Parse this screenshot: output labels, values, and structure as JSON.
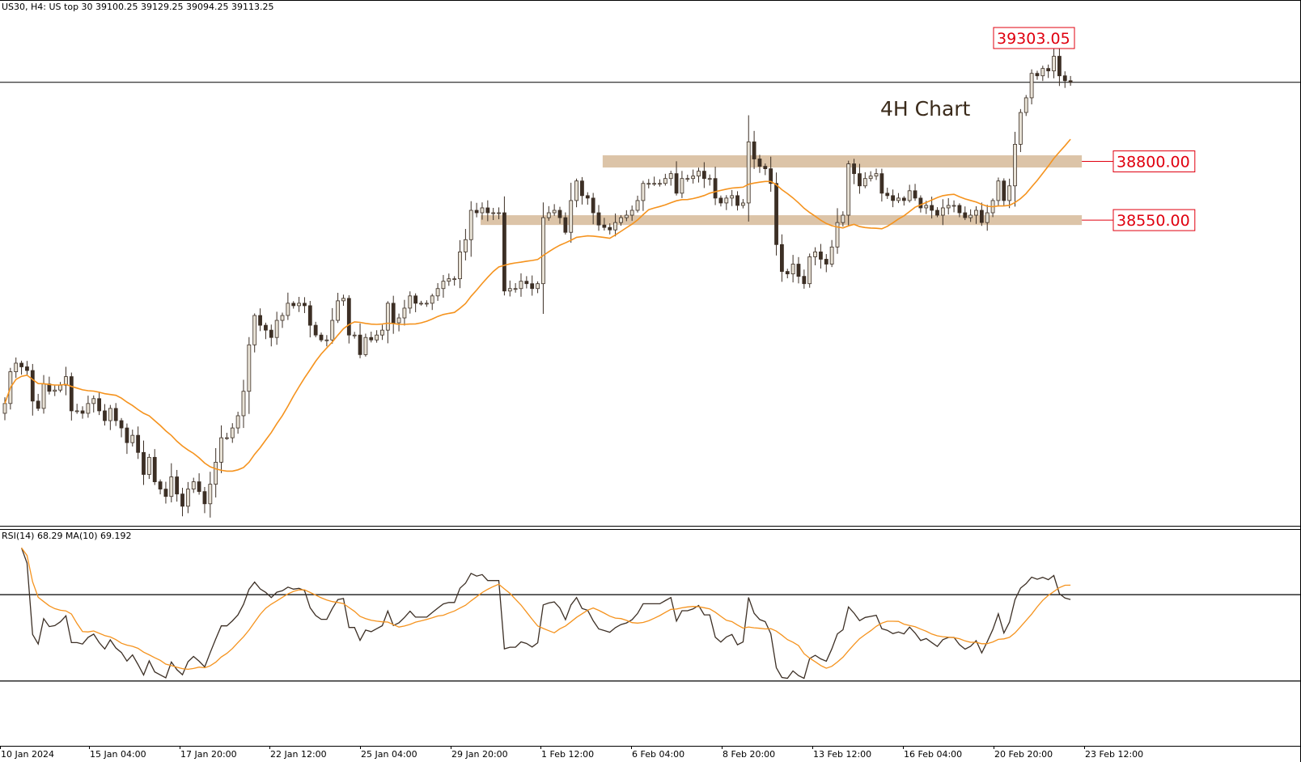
{
  "header": {
    "info": "US30, H4:  US top 30  39100.25 39129.25 39094.25 39113.25"
  },
  "annotations": {
    "title": "4H Chart"
  },
  "rsi_panel": {
    "info": "RSI(14) 68.29 MA(10) 69.192"
  },
  "colors": {
    "bull_body": "#e8e2d6",
    "bear_body": "#3c2f25",
    "wick": "#3c2f25",
    "ma": "#f5931e",
    "rsi": "#3c2f25",
    "zone": "#dcc4a8",
    "label_red": "#e0000f"
  },
  "chart_data": [
    {
      "type": "candlestick",
      "title": "4H Chart",
      "symbol": "US30, H4",
      "ylim": [
        37300,
        39450
      ],
      "x_ticks": [
        "10 Jan 2024",
        "15 Jan 04:00",
        "17 Jan 20:00",
        "22 Jan 12:00",
        "25 Jan 04:00",
        "29 Jan 20:00",
        "1 Feb 12:00",
        "6 Feb 04:00",
        "8 Feb 20:00",
        "13 Feb 12:00",
        "16 Feb 04:00",
        "20 Feb 20:00",
        "23 Feb 12:00"
      ],
      "zones": [
        {
          "label": "38800.00",
          "low": 38765,
          "high": 38815
        },
        {
          "label": "38550.00",
          "low": 38530,
          "high": 38570
        }
      ],
      "price_labels": [
        {
          "label": "39303.05",
          "value": 39303.05
        }
      ],
      "current_price": 39113.25,
      "close": [
        37800,
        37930,
        37965,
        37950,
        37935,
        37810,
        37780,
        37880,
        37850,
        37855,
        37875,
        37910,
        37770,
        37770,
        37760,
        37800,
        37820,
        37770,
        37730,
        37780,
        37730,
        37700,
        37640,
        37670,
        37600,
        37510,
        37580,
        37480,
        37450,
        37420,
        37500,
        37430,
        37380,
        37450,
        37480,
        37440,
        37390,
        37470,
        37560,
        37660,
        37660,
        37700,
        37750,
        37850,
        38040,
        38160,
        38120,
        38100,
        38070,
        38140,
        38160,
        38210,
        38200,
        38210,
        38200,
        38120,
        38080,
        38060,
        38060,
        38140,
        38220,
        38230,
        38080,
        38080,
        38000,
        38070,
        38060,
        38080,
        38100,
        38210,
        38130,
        38150,
        38190,
        38240,
        38210,
        38210,
        38210,
        38240,
        38270,
        38300,
        38310,
        38310,
        38420,
        38470,
        38590,
        38580,
        38600,
        38580,
        38580,
        38580,
        38260,
        38270,
        38270,
        38300,
        38290,
        38270,
        38290,
        38560,
        38580,
        38590,
        38560,
        38500,
        38630,
        38710,
        38650,
        38640,
        38580,
        38530,
        38520,
        38510,
        38540,
        38560,
        38570,
        38590,
        38630,
        38700,
        38700,
        38700,
        38700,
        38720,
        38740,
        38660,
        38720,
        38720,
        38730,
        38750,
        38720,
        38720,
        38640,
        38620,
        38640,
        38650,
        38610,
        38620,
        38870,
        38800,
        38770,
        38760,
        38700,
        38450,
        38340,
        38330,
        38370,
        38320,
        38290,
        38400,
        38420,
        38390,
        38370,
        38440,
        38540,
        38570,
        38780,
        38740,
        38690,
        38720,
        38730,
        38740,
        38660,
        38650,
        38630,
        38640,
        38630,
        38670,
        38640,
        38600,
        38610,
        38590,
        38570,
        38600,
        38610,
        38610,
        38580,
        38560,
        38570,
        38590,
        38540,
        38580,
        38630,
        38710,
        38630,
        38690,
        38860,
        38990,
        39050,
        39150,
        39140,
        39170,
        39160,
        39220,
        39140,
        39120,
        39113.25
      ],
      "rsi": {
        "name": "RSI(14)",
        "ylim": [
          0,
          100
        ],
        "levels": [
          70,
          30
        ],
        "last": 68.29,
        "ma_last": 69.192
      },
      "sma_period": 20,
      "rsi_period": 14,
      "rsi_ma_period": 10
    }
  ]
}
